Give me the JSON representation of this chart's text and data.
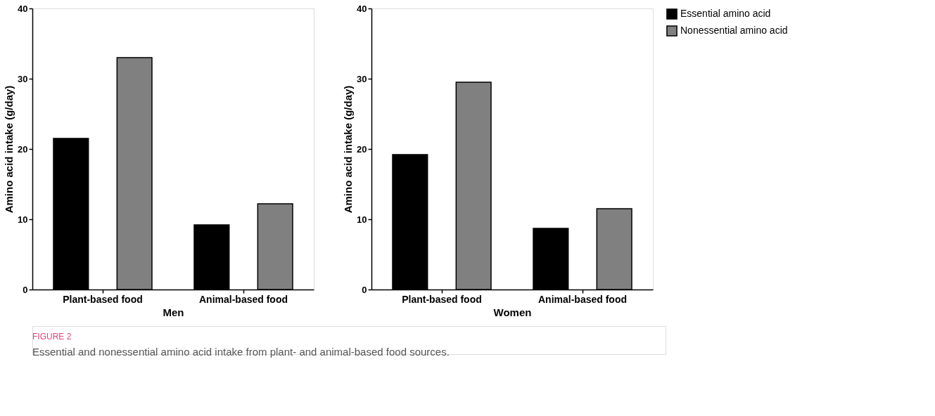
{
  "chart_data": [
    {
      "type": "bar",
      "categories": [
        "Plant-based food",
        "Animal-based food"
      ],
      "xlabel": "Men",
      "ylabel": "Amino acid intake (g/day)",
      "ylim": [
        0,
        40
      ],
      "yticks": [
        0,
        10,
        20,
        30,
        40
      ],
      "grid": false,
      "legend": "right",
      "series": [
        {
          "name": "Essential amino acid",
          "color": "#000000",
          "values": [
            21.5,
            9.2
          ]
        },
        {
          "name": "Nonessential amino acid",
          "color": "#808080",
          "values": [
            33.0,
            12.2
          ]
        }
      ],
      "annotations": [
        "FIGURE 2",
        "Essential and nonessential amino acid intake from plant- and animal-based food sources."
      ]
    },
    {
      "type": "bar",
      "categories": [
        "Plant-based food",
        "Animal-based food"
      ],
      "xlabel": "Women",
      "ylabel": "Amino acid intake (g/day)",
      "ylim": [
        0,
        40
      ],
      "yticks": [
        0,
        10,
        20,
        30,
        40
      ],
      "grid": false,
      "legend": "right",
      "series": [
        {
          "name": "Essential amino acid",
          "color": "#000000",
          "values": [
            19.2,
            8.7
          ]
        },
        {
          "name": "Nonessential amino acid",
          "color": "#808080",
          "values": [
            29.5,
            11.5
          ]
        }
      ]
    }
  ]
}
